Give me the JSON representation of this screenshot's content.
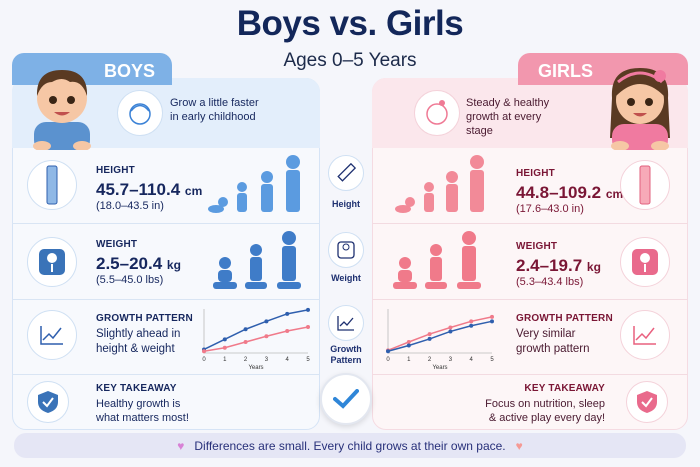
{
  "header": {
    "title": "Boys vs. Girls",
    "subtitle": "Ages 0–5 Years"
  },
  "colors": {
    "boys": "#2f5fae",
    "girls": "#f07a8a",
    "boys_accent": "#7eb1e6",
    "girls_accent": "#f297ae"
  },
  "boys": {
    "tab": "BOYS",
    "tagline": "Grow a little faster in early childhood",
    "height": {
      "label": "HEIGHT",
      "value": "45.7–110.4",
      "unit": "cm",
      "imperial": "(18.0–43.5 in)"
    },
    "weight": {
      "label": "WEIGHT",
      "value": "2.5–20.4",
      "unit": "kg",
      "imperial": "(5.5–45.0 lbs)"
    },
    "growth": {
      "label": "GROWTH PATTERN",
      "text": "Slightly ahead in height & weight"
    },
    "takeaway": {
      "label": "KEY TAKEAWAY",
      "text": "Healthy growth is what matters most!"
    }
  },
  "girls": {
    "tab": "GIRLS",
    "tagline": "Steady & healthy growth at every stage",
    "height": {
      "label": "HEIGHT",
      "value": "44.8–109.2",
      "unit": "cm",
      "imperial": "(17.6–43.0 in)"
    },
    "weight": {
      "label": "WEIGHT",
      "value": "2.4–19.7",
      "unit": "kg",
      "imperial": "(5.3–43.4 lbs)"
    },
    "growth": {
      "label": "GROWTH PATTERN",
      "text": "Very similar growth pattern"
    },
    "takeaway": {
      "label": "KEY TAKEAWAY",
      "text": "Focus on nutrition, sleep & active play every day!"
    }
  },
  "middle": {
    "height": "Height",
    "weight": "Weight",
    "growth": "Growth Pattern"
  },
  "footer": {
    "text": "Differences are small. Every child grows at their own pace."
  },
  "chart_data": [
    {
      "type": "line",
      "xlabel": "Years",
      "x": [
        0,
        1,
        2,
        3,
        4,
        5
      ],
      "ylim": [
        0,
        10
      ],
      "grid": false,
      "series": [
        {
          "color": "#2f5fae",
          "values": [
            0.8,
            3.1,
            5.4,
            7.2,
            8.9,
            9.8
          ]
        },
        {
          "color": "#f07a8a",
          "values": [
            0.4,
            1.2,
            2.5,
            3.8,
            5.0,
            5.9
          ]
        }
      ]
    },
    {
      "type": "line",
      "xlabel": "Years",
      "x": [
        0,
        1,
        2,
        3,
        4,
        5
      ],
      "ylim": [
        0,
        10
      ],
      "grid": false,
      "series": [
        {
          "color": "#f07a8a",
          "values": [
            0.6,
            2.5,
            4.3,
            5.8,
            7.2,
            8.2
          ]
        },
        {
          "color": "#2f5fae",
          "values": [
            0.4,
            1.7,
            3.2,
            4.9,
            6.2,
            7.2
          ]
        }
      ]
    }
  ]
}
